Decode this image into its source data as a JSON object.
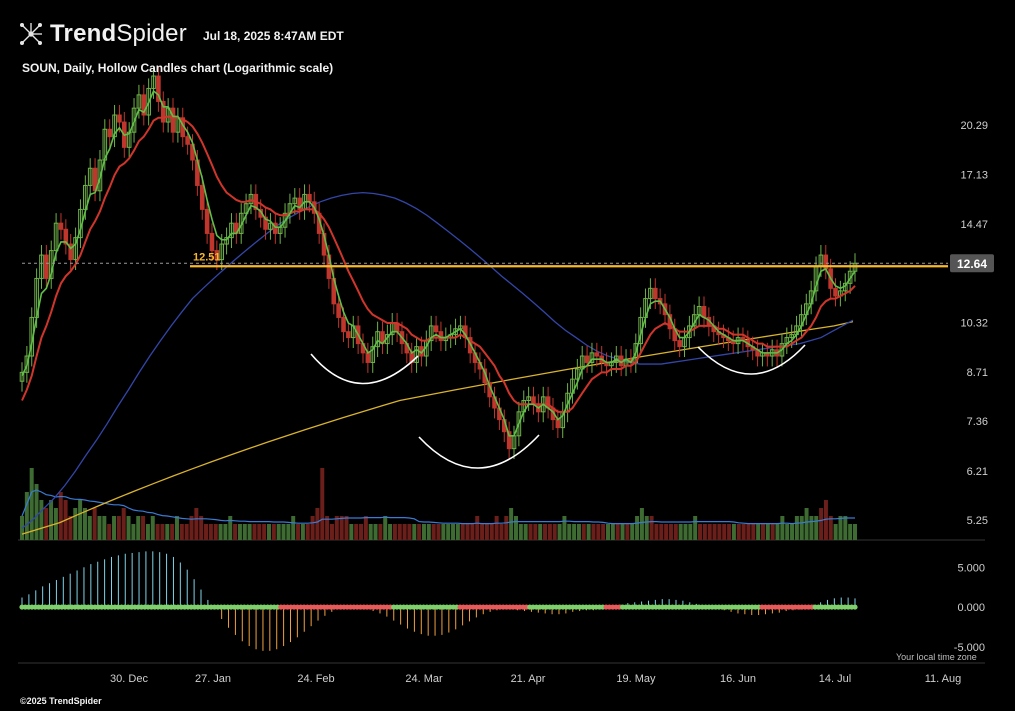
{
  "header": {
    "brand_bold": "Trend",
    "brand_light": "Spider",
    "timestamp": "Jul 18, 2025 8:47AM EDT",
    "subtitle": "SOUN, Daily, Hollow Candles chart (Logarithmic scale)",
    "logo_icon": "network-nodes-icon"
  },
  "footer": {
    "copyright": "©2025 TrendSpider",
    "timezone_note": "Your local time zone"
  },
  "colors": {
    "background": "#000000",
    "up_candle": "#6fb24a",
    "down_candle": "#c0362c",
    "ema_fast": "#5fbf4a",
    "ema_slow": "#d0352b",
    "sma_50": "#3346a8",
    "sma_200": "#d9b32c",
    "resistance": "#f5b82e",
    "volume_up": "#3d6b32",
    "volume_down": "#6b1f1a",
    "volume_ma": "#3a7bd5",
    "osc_pos": "#7fd3e8",
    "osc_neg": "#f0a040",
    "dot_green": "#7ed06a",
    "dot_red": "#e85a5a",
    "price_tag_bg": "#555555",
    "pattern_arc": "#ffffff"
  },
  "chart_data": {
    "type": "candlestick",
    "symbol": "SOUN",
    "interval": "Daily",
    "style": "Hollow Candles",
    "scale": "logarithmic",
    "x_ticks": [
      "30. Dec",
      "27. Jan",
      "24. Feb",
      "24. Mar",
      "21. Apr",
      "19. May",
      "16. Jun",
      "14. Jul",
      "11. Aug"
    ],
    "price_ticks": [
      20.29,
      17.13,
      14.47,
      12.64,
      10.32,
      8.71,
      7.36,
      6.21,
      5.25
    ],
    "price_tick_labels": [
      "20.29",
      "17.13",
      "14.47",
      "10.32",
      "8.71",
      "7.36",
      "6.21",
      "5.25"
    ],
    "ylim": [
      4.9,
      24.5
    ],
    "last_price": 12.64,
    "last_price_label": "12.64",
    "resistance_level": 12.51,
    "resistance_label": "12.51",
    "closes": [
      8.7,
      9.2,
      10.5,
      12.0,
      13.0,
      12.0,
      13.2,
      14.5,
      14.2,
      13.5,
      12.8,
      13.8,
      15.2,
      16.5,
      17.5,
      16.2,
      18.0,
      20.0,
      19.5,
      21.0,
      20.5,
      18.8,
      19.8,
      21.5,
      22.5,
      21.0,
      23.0,
      24.0,
      22.0,
      20.5,
      21.5,
      19.8,
      20.8,
      19.5,
      19.0,
      18.0,
      16.5,
      15.2,
      14.0,
      13.2,
      12.8,
      13.5,
      13.8,
      14.5,
      14.0,
      15.0,
      15.5,
      16.0,
      15.2,
      14.8,
      14.2,
      14.5,
      14.0,
      14.3,
      15.0,
      15.5,
      15.8,
      15.2,
      16.0,
      15.6,
      15.0,
      14.0,
      13.0,
      12.0,
      11.0,
      10.5,
      10.0,
      9.8,
      10.2,
      9.6,
      9.3,
      9.0,
      9.5,
      10.0,
      9.6,
      9.9,
      10.3,
      10.0,
      9.6,
      9.3,
      9.0,
      9.5,
      9.2,
      9.7,
      10.2,
      10.0,
      9.7,
      9.8,
      9.9,
      10.1,
      10.2,
      9.8,
      9.3,
      9.0,
      8.8,
      8.4,
      8.0,
      7.7,
      7.4,
      7.1,
      6.7,
      7.0,
      7.6,
      7.9,
      8.0,
      7.8,
      7.6,
      8.0,
      7.7,
      7.4,
      7.2,
      7.6,
      8.1,
      8.5,
      8.8,
      9.2,
      9.0,
      9.3,
      9.2,
      9.0,
      8.9,
      9.0,
      9.2,
      8.9,
      9.1,
      9.0,
      9.6,
      10.5,
      11.2,
      11.6,
      11.2,
      11.0,
      10.6,
      10.1,
      9.7,
      9.5,
      9.8,
      10.2,
      10.6,
      10.9,
      10.5,
      10.2,
      10.0,
      9.9,
      9.8,
      9.7,
      9.6,
      9.8,
      9.7,
      9.5,
      9.4,
      9.2,
      9.3,
      9.2,
      9.4,
      9.2,
      9.6,
      9.8,
      9.9,
      10.2,
      10.6,
      11.0,
      11.5,
      12.5,
      13.0,
      12.4,
      11.6,
      11.3,
      11.5,
      11.8,
      12.3,
      12.64
    ],
    "ema_fast": [
      8.6,
      8.9,
      9.6,
      10.5,
      11.4,
      11.6,
      12.2,
      13.1,
      13.6,
      13.6,
      13.3,
      13.5,
      14.2,
      15.1,
      16.0,
      16.1,
      16.9,
      18.1,
      18.7,
      19.7,
      20.1,
      19.6,
      19.7,
      20.5,
      21.4,
      21.2,
      21.9,
      22.8,
      22.5,
      21.6,
      21.6,
      20.9,
      20.9,
      20.3,
      19.8,
      19.1,
      18.0,
      16.9,
      15.7,
      14.7,
      13.9,
      13.7,
      13.7,
      14.0,
      14.0,
      14.4,
      14.9,
      15.4,
      15.3,
      15.1,
      14.7,
      14.6,
      14.3,
      14.3,
      14.6,
      15.0,
      15.4,
      15.3,
      15.6,
      15.6,
      15.3,
      14.7,
      13.9,
      13.0,
      12.0,
      11.3,
      10.7,
      10.3,
      10.2,
      9.9,
      9.6,
      9.3,
      9.4,
      9.7,
      9.6,
      9.8,
      10.0,
      10.0,
      9.8,
      9.6,
      9.3,
      9.4,
      9.3,
      9.5,
      9.8,
      9.9,
      9.8,
      9.8,
      9.9,
      10.0,
      10.1,
      9.9,
      9.6,
      9.3,
      9.0,
      8.7,
      8.3,
      8.0,
      7.7,
      7.4,
      7.0,
      7.0,
      7.3,
      7.6,
      7.8,
      7.8,
      7.7,
      7.8,
      7.7,
      7.6,
      7.4,
      7.5,
      7.8,
      8.1,
      8.4,
      8.8,
      8.9,
      9.1,
      9.1,
      9.1,
      9.0,
      9.0,
      9.1,
      9.0,
      9.1,
      9.0,
      9.3,
      9.9,
      10.5,
      11.0,
      11.1,
      11.1,
      10.8,
      10.5,
      10.1,
      9.8,
      9.8,
      10.0,
      10.3,
      10.6,
      10.5,
      10.4,
      10.2,
      10.0,
      9.9,
      9.8,
      9.7,
      9.7,
      9.7,
      9.6,
      9.5,
      9.4,
      9.3,
      9.3,
      9.3,
      9.3,
      9.4,
      9.6,
      9.7,
      9.9,
      10.2,
      10.6,
      11.0,
      11.7,
      12.3,
      12.4,
      12.0,
      11.7,
      11.6,
      11.7,
      12.0,
      12.3
    ],
    "ema_slow": [
      7.9,
      8.2,
      8.6,
      9.2,
      9.8,
      10.2,
      10.7,
      11.3,
      11.8,
      12.1,
      12.3,
      12.6,
      13.0,
      13.6,
      14.2,
      14.6,
      15.1,
      15.8,
      16.4,
      17.1,
      17.6,
      17.8,
      18.1,
      18.6,
      19.2,
      19.5,
      20.0,
      20.6,
      20.8,
      20.8,
      20.9,
      20.8,
      20.8,
      20.7,
      20.5,
      20.2,
      19.7,
      19.1,
      18.4,
      17.7,
      17.0,
      16.5,
      16.1,
      15.9,
      15.7,
      15.6,
      15.6,
      15.7,
      15.6,
      15.5,
      15.3,
      15.2,
      15.0,
      14.9,
      14.9,
      15.0,
      15.1,
      15.1,
      15.2,
      15.2,
      15.2,
      15.0,
      14.7,
      14.3,
      13.8,
      13.3,
      12.8,
      12.3,
      11.9,
      11.5,
      11.1,
      10.8,
      10.6,
      10.5,
      10.4,
      10.3,
      10.3,
      10.3,
      10.2,
      10.1,
      9.9,
      9.8,
      9.7,
      9.7,
      9.8,
      9.8,
      9.8,
      9.8,
      9.8,
      9.8,
      9.9,
      9.8,
      9.7,
      9.6,
      9.5,
      9.3,
      9.1,
      8.9,
      8.6,
      8.4,
      8.1,
      7.9,
      7.8,
      7.8,
      7.8,
      7.8,
      7.8,
      7.8,
      7.8,
      7.7,
      7.6,
      7.6,
      7.6,
      7.7,
      7.9,
      8.1,
      8.3,
      8.5,
      8.6,
      8.7,
      8.7,
      8.8,
      8.8,
      8.8,
      8.9,
      8.9,
      9.0,
      9.3,
      9.6,
      9.9,
      10.1,
      10.2,
      10.3,
      10.2,
      10.1,
      10.0,
      10.0,
      10.0,
      10.1,
      10.2,
      10.2,
      10.2,
      10.2,
      10.1,
      10.1,
      10.0,
      9.9,
      9.9,
      9.9,
      9.8,
      9.7,
      9.6,
      9.6,
      9.5,
      9.5,
      9.5,
      9.5,
      9.5,
      9.6,
      9.7,
      9.8,
      10.0,
      10.2,
      10.5,
      10.9,
      11.1,
      11.2,
      11.2,
      11.3,
      11.4,
      11.5,
      11.7
    ],
    "sma_50": [
      5.1,
      5.25,
      5.45,
      5.65,
      5.9,
      6.2,
      6.55,
      6.9,
      7.3,
      7.75,
      8.2,
      8.7,
      9.2,
      9.7,
      10.2,
      10.7,
      11.2,
      11.6,
      12.0,
      12.4,
      12.8,
      13.2,
      13.6,
      14.0,
      14.4,
      14.75,
      15.05,
      15.35,
      15.6,
      15.8,
      15.95,
      16.05,
      16.1,
      16.05,
      15.95,
      15.8,
      15.55,
      15.25,
      14.9,
      14.5,
      14.1,
      13.7,
      13.3,
      12.9,
      12.5,
      12.1,
      11.75,
      11.4,
      11.05,
      10.7,
      10.35,
      10.05,
      9.8,
      9.55,
      9.35,
      9.2,
      9.1,
      9.0,
      8.95,
      8.95,
      8.95,
      9.0,
      9.05,
      9.1,
      9.15,
      9.2,
      9.25,
      9.3,
      9.35,
      9.4,
      9.45,
      9.5,
      9.55,
      9.6,
      9.7,
      9.8,
      10.0,
      10.2,
      10.4
    ],
    "sma_200": [
      5.0,
      5.1,
      5.2,
      5.35,
      5.5,
      5.65,
      5.8,
      5.95,
      6.1,
      6.25,
      6.4,
      6.55,
      6.7,
      6.85,
      7.0,
      7.15,
      7.3,
      7.45,
      7.6,
      7.75,
      7.9,
      8.0,
      8.1,
      8.2,
      8.3,
      8.4,
      8.5,
      8.6,
      8.7,
      8.8,
      8.9,
      9.0,
      9.1,
      9.2,
      9.3,
      9.4,
      9.5,
      9.6,
      9.7,
      9.8,
      9.9,
      10.0,
      10.1,
      10.2,
      10.35
    ],
    "volume": [
      3,
      6,
      9,
      7,
      5,
      4,
      5,
      4,
      6,
      5,
      3,
      4,
      5,
      4,
      3,
      4,
      3,
      3,
      2,
      3,
      3,
      4,
      3,
      2,
      3,
      3,
      2,
      3,
      2,
      2,
      2,
      2,
      3,
      2,
      2,
      3,
      4,
      3,
      2,
      2,
      2,
      2,
      2,
      3,
      2,
      2,
      2,
      2,
      2,
      2,
      2,
      2,
      2,
      2,
      2,
      2,
      3,
      2,
      2,
      2,
      3,
      4,
      9,
      3,
      2,
      3,
      3,
      3,
      2,
      2,
      2,
      3,
      2,
      2,
      2,
      3,
      2,
      2,
      2,
      2,
      2,
      2,
      2,
      2,
      2,
      2,
      2,
      2,
      2,
      2,
      2,
      2,
      2,
      2,
      3,
      2,
      2,
      2,
      3,
      2,
      3,
      4,
      3,
      2,
      2,
      2,
      2,
      2,
      2,
      2,
      2,
      2,
      3,
      2,
      2,
      2,
      2,
      2,
      2,
      2,
      2,
      2,
      2,
      2,
      2,
      2,
      2,
      3,
      4,
      3,
      3,
      2,
      2,
      2,
      2,
      2,
      2,
      2,
      2,
      3,
      2,
      2,
      2,
      2,
      2,
      2,
      2,
      2,
      2,
      2,
      2,
      2,
      2,
      2,
      2,
      2,
      2,
      3,
      2,
      2,
      3,
      3,
      4,
      3,
      3,
      4,
      5,
      3,
      2,
      3,
      3,
      2,
      2
    ],
    "oscillator_ticks": [
      5.0,
      0.0,
      -5.0
    ],
    "oscillator_tick_labels": [
      "5.000",
      "0.000",
      "-5.000"
    ],
    "oscillator_ylim": [
      -6.4,
      7.8
    ],
    "oscillator": [
      1.2,
      1.6,
      2.1,
      2.6,
      3.0,
      3.4,
      3.8,
      4.2,
      4.6,
      5.0,
      5.4,
      5.7,
      6.0,
      6.3,
      6.5,
      6.7,
      6.8,
      6.9,
      7.0,
      7.0,
      6.9,
      6.7,
      6.3,
      5.6,
      4.7,
      3.5,
      2.2,
      0.9,
      -0.3,
      -1.5,
      -2.6,
      -3.5,
      -4.3,
      -4.9,
      -5.3,
      -5.5,
      -5.5,
      -5.3,
      -4.9,
      -4.4,
      -3.8,
      -3.1,
      -2.4,
      -1.7,
      -1.1,
      -0.6,
      -0.2,
      -0.1,
      -0.1,
      -0.2,
      -0.3,
      -0.5,
      -0.8,
      -1.2,
      -1.7,
      -2.2,
      -2.7,
      -3.1,
      -3.4,
      -3.6,
      -3.6,
      -3.5,
      -3.2,
      -2.8,
      -2.3,
      -1.8,
      -1.3,
      -0.9,
      -0.6,
      -0.4,
      -0.3,
      -0.3,
      -0.4,
      -0.5,
      -0.6,
      -0.7,
      -0.8,
      -0.9,
      -0.9,
      -0.8,
      -0.6,
      -0.5,
      -0.4,
      -0.4,
      -0.3,
      -0.2,
      0.1,
      0.3,
      0.5,
      0.6,
      0.7,
      0.8,
      0.9,
      1.0,
      1.0,
      0.9,
      0.8,
      0.6,
      0.4,
      0.2,
      0.1,
      -0.2,
      -0.4,
      -0.6,
      -0.8,
      -0.9,
      -1.0,
      -1.0,
      -0.9,
      -0.8,
      -0.7,
      -0.5,
      -0.4,
      -0.3,
      -0.2,
      0.3,
      0.6,
      0.9,
      1.1,
      1.2,
      1.2,
      1.1
    ],
    "squeeze_dots": [
      "g",
      "g",
      "g",
      "g",
      "g",
      "g",
      "g",
      "g",
      "g",
      "g",
      "g",
      "g",
      "g",
      "g",
      "g",
      "g",
      "g",
      "g",
      "g",
      "g",
      "g",
      "g",
      "g",
      "g",
      "g",
      "g",
      "g",
      "g",
      "g",
      "g",
      "g",
      "g",
      "g",
      "g",
      "g",
      "g",
      "g",
      "g",
      "g",
      "g",
      "g",
      "g",
      "g",
      "g",
      "g",
      "g",
      "g",
      "g",
      "g",
      "g",
      "g",
      "g",
      "g",
      "g",
      "g",
      "g",
      "g",
      "g",
      "g",
      "g",
      "g",
      "g",
      "g",
      "g",
      "g",
      "g",
      "g",
      "g",
      "g",
      "g",
      "g",
      "g",
      "g",
      "g",
      "g",
      "g",
      "g",
      "g",
      "r",
      "r",
      "r",
      "r",
      "r",
      "r",
      "r",
      "r",
      "r",
      "r",
      "r",
      "r",
      "r",
      "r",
      "r",
      "r",
      "r",
      "r",
      "r",
      "r",
      "r",
      "r",
      "r",
      "r",
      "r",
      "r",
      "r",
      "r",
      "r",
      "r",
      "r",
      "r",
      "r",
      "r",
      "g",
      "g",
      "g",
      "g",
      "g",
      "g",
      "g",
      "g",
      "g",
      "g",
      "g",
      "g",
      "g",
      "g",
      "g",
      "g",
      "g",
      "g",
      "g",
      "g",
      "r",
      "r",
      "r",
      "r",
      "r",
      "r",
      "r",
      "r",
      "r",
      "r",
      "r",
      "r",
      "r",
      "r",
      "r",
      "r",
      "r",
      "r",
      "r",
      "r",
      "r",
      "g",
      "g",
      "g",
      "g",
      "g",
      "g",
      "g",
      "g",
      "g",
      "g",
      "g",
      "g",
      "g",
      "g",
      "g",
      "g",
      "g",
      "g",
      "g",
      "g",
      "g",
      "g",
      "g",
      "r",
      "r",
      "r",
      "r",
      "r",
      "g",
      "g",
      "g",
      "g",
      "g",
      "g",
      "g",
      "g",
      "g",
      "g",
      "g",
      "g",
      "g",
      "g",
      "g",
      "g",
      "g",
      "g",
      "g",
      "g",
      "g",
      "g",
      "g",
      "g",
      "g",
      "g",
      "g",
      "g",
      "g",
      "g",
      "g",
      "g",
      "g",
      "g",
      "g",
      "g",
      "g",
      "g",
      "g",
      "g",
      "g",
      "g",
      "r",
      "r",
      "r",
      "r",
      "r",
      "r",
      "r",
      "r",
      "r",
      "r",
      "r",
      "r",
      "r",
      "r",
      "r",
      "r",
      "g",
      "g",
      "g",
      "g",
      "g",
      "g",
      "g",
      "g",
      "g",
      "g",
      "g",
      "g",
      "g"
    ],
    "grid": false,
    "annotations": [
      "cup-left",
      "cup-center",
      "cup-right"
    ]
  }
}
